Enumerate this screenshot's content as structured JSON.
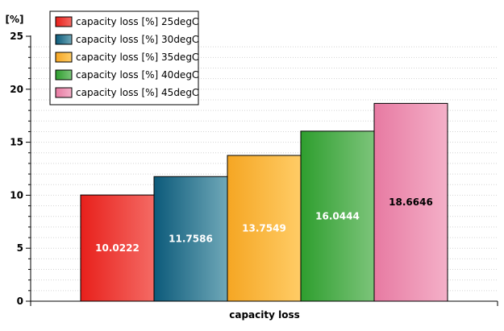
{
  "chart_data": {
    "type": "bar",
    "xlabel": "capacity loss",
    "ylabel": "[%]",
    "ylim": [
      0,
      25
    ],
    "y_ticks": [
      0,
      5,
      10,
      15,
      20,
      25
    ],
    "y_minor_step": 1,
    "grid": "horizontal minor dotted",
    "legend_placement": "top-left",
    "series": [
      {
        "name": "capacity loss [%] 25degC",
        "value": 10.0222,
        "label": "10.0222",
        "color_light": "#f46a64",
        "color_dark": "#e8201b"
      },
      {
        "name": "capacity loss [%] 30degC",
        "value": 11.7586,
        "label": "11.7586",
        "color_light": "#6fa8b8",
        "color_dark": "#0c5a7a"
      },
      {
        "name": "capacity loss [%] 35degC",
        "value": 13.7549,
        "label": "13.7549",
        "color_light": "#ffcc66",
        "color_dark": "#f5a623"
      },
      {
        "name": "capacity loss [%] 40degC",
        "value": 16.0444,
        "label": "16.0444",
        "color_light": "#7cc47a",
        "color_dark": "#2e9e2e"
      },
      {
        "name": "capacity loss [%] 45degC",
        "value": 18.6646,
        "label": "18.6646",
        "color_light": "#f4b0c8",
        "color_dark": "#e77aa2"
      }
    ]
  }
}
